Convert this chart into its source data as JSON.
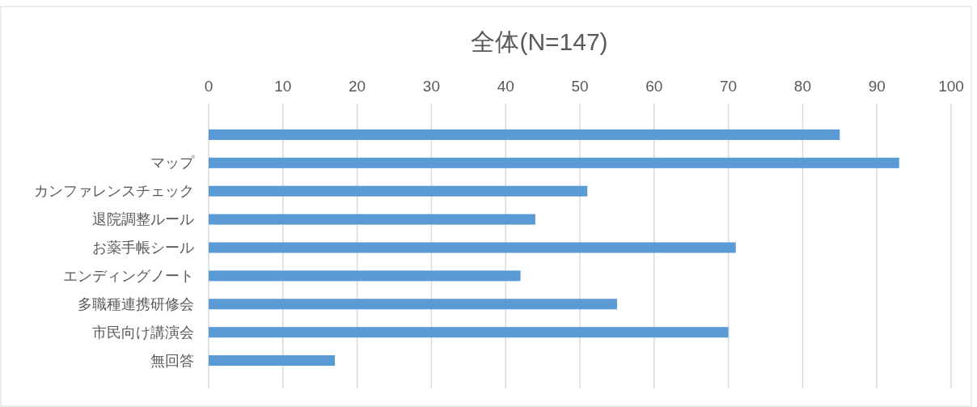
{
  "chart_data": {
    "type": "bar",
    "orientation": "horizontal",
    "title": "全体(N=147)",
    "categories": [
      null,
      "マップ",
      "カンファレンスチェック",
      "退院調整ルール",
      "お薬手帳シール",
      "エンディングノート",
      "多職種連携研修会",
      "市民向け講演会",
      "無回答"
    ],
    "values": [
      85,
      93,
      51,
      44,
      71,
      42,
      55,
      70,
      17
    ],
    "color": "#5b9bd5",
    "xlim": [
      0,
      100
    ],
    "xticks": [
      0,
      10,
      20,
      30,
      40,
      50,
      60,
      70,
      80,
      90,
      100
    ],
    "grid": "x"
  }
}
